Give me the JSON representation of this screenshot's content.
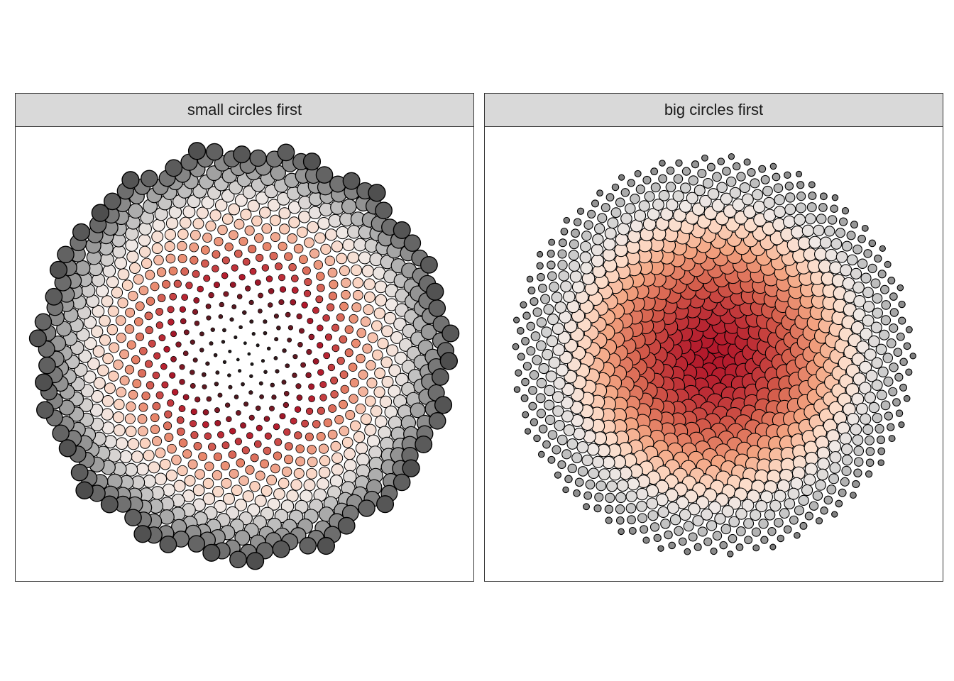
{
  "chart_data": [
    {
      "type": "scatter",
      "title": "small circles first",
      "description_of_marks": "sunflower-packed circles; size grows from center outward",
      "n_points": 900,
      "order": "small circles first",
      "color_scale": {
        "inner": "#7a0f1c",
        "mid_light": "#fbe2d6",
        "outer": "#4d4d4d"
      },
      "fill_ramp": [
        "#1a1a1a",
        "#b2182b",
        "#e8866a",
        "#fbd6c4",
        "#f0e9e6",
        "#bdbdbd",
        "#8a8a8a",
        "#4d4d4d"
      ],
      "stroke": "#000000",
      "grid": false,
      "axes": false
    },
    {
      "type": "scatter",
      "title": "big circles first",
      "description_of_marks": "sunflower-packed circles; size shrinks from center outward",
      "n_points": 1000,
      "order": "big circles first",
      "color_scale": {
        "inner": "#b2182b",
        "mid_light": "#fbe2d6",
        "outer": "#8a8a8a"
      },
      "fill_ramp": [
        "#b2182b",
        "#d6604d",
        "#f4a582",
        "#fddbc7",
        "#f0e9e6",
        "#d0d0d0",
        "#a8a8a8",
        "#7a7a7a"
      ],
      "stroke": "#000000",
      "grid": false,
      "axes": false
    }
  ]
}
